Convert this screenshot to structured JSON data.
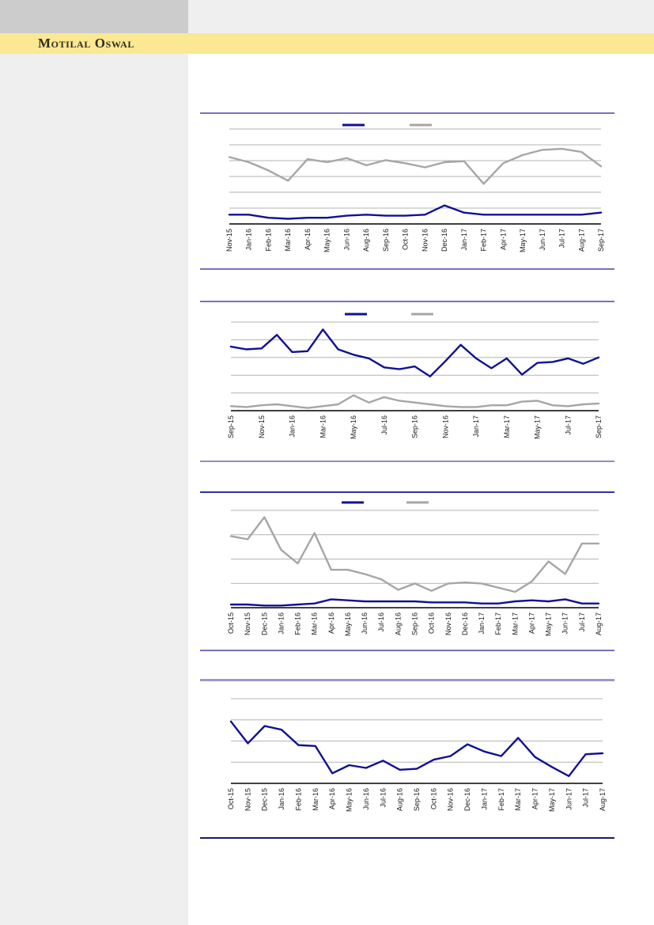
{
  "header": {
    "brand": "Motilal Oswal"
  },
  "colors": {
    "brand_banner_yellow": "#fae892",
    "header_block_gray": "#cccccc",
    "sidebar_gray": "#efefef",
    "navy_series": "#101095",
    "gray_series": "#a6a6a6",
    "gridline_gray": "#b3b3b3",
    "divider_purple": "#7671c3",
    "divider_dark_navy": "#191970",
    "divider_light_purple": "#9b97ce"
  },
  "chart_data": [
    {
      "id": "chart-1",
      "type": "line",
      "title": "",
      "x_labels": [
        "Nov-15",
        "Jan-16",
        "Feb-16",
        "Mar-16",
        "Apr-16",
        "May-16",
        "Jun-16",
        "Aug-16",
        "Sep-16",
        "Oct-16",
        "Nov-16",
        "Dec-16",
        "Jan-17",
        "Feb-17",
        "Apr-17",
        "May-17",
        "Jun-17",
        "Jul-17",
        "Aug-17",
        "Sep-17"
      ],
      "series": [
        {
          "name": "navy-series",
          "color": "#101095",
          "values": [
            9,
            9,
            6,
            5,
            6,
            6,
            8,
            9,
            8,
            8,
            9,
            18,
            11,
            9,
            9,
            9,
            9,
            9,
            9,
            11
          ]
        },
        {
          "name": "gray-series",
          "color": "#a6a6a6",
          "values": [
            65,
            60,
            52,
            42,
            63,
            60,
            64,
            57,
            62,
            59,
            55,
            60,
            61,
            39,
            59,
            67,
            72,
            73,
            70,
            56
          ]
        }
      ],
      "legend": {
        "visible": true,
        "labels": [
          "",
          ""
        ]
      },
      "y_axis": {
        "tick_labels": [],
        "note": "no y-axis labels visible; values estimated on relative 0-100 scale"
      }
    },
    {
      "id": "chart-2",
      "type": "line",
      "title": "",
      "x_labels": [
        "Sep-15",
        "Nov-15",
        "Jan-16",
        "Mar-16",
        "May-16",
        "Jul-16",
        "Sep-16",
        "Nov-16",
        "Jan-17",
        "Mar-17",
        "May-17",
        "Jul-17",
        "Sep-17"
      ],
      "series": [
        {
          "name": "navy-series",
          "color": "#101095",
          "values": [
            71,
            68,
            69,
            84,
            65,
            66,
            90,
            68,
            62,
            58,
            48,
            46,
            49,
            38,
            55,
            73,
            58,
            47,
            58,
            40,
            53,
            54,
            58,
            52,
            59
          ]
        },
        {
          "name": "gray-series",
          "color": "#a6a6a6",
          "values": [
            5,
            4,
            6,
            7,
            5,
            3,
            5,
            7,
            17,
            9,
            15,
            11,
            9,
            7,
            5,
            4,
            4,
            6,
            6,
            10,
            11,
            6,
            5,
            7,
            8
          ]
        }
      ],
      "legend": {
        "visible": true,
        "labels": [
          "",
          ""
        ]
      },
      "y_axis": {
        "tick_labels": [],
        "note": "no y-axis labels visible; values estimated on relative 0-100 scale"
      }
    },
    {
      "id": "chart-3",
      "type": "line",
      "title": "",
      "x_labels": [
        "Oct-15",
        "Nov-15",
        "Dec-15",
        "Jan-16",
        "Feb-16",
        "Mar-16",
        "Apr-16",
        "May-16",
        "Jun-16",
        "Jul-16",
        "Aug-16",
        "Sep-16",
        "Oct-16",
        "Nov-16",
        "Dec-16",
        "Jan-17",
        "Feb-17",
        "Mar-17",
        "Apr-17",
        "May-17",
        "Jun-17",
        "Jul-17",
        "Aug-17"
      ],
      "series": [
        {
          "name": "navy-series",
          "color": "#101095",
          "values": [
            3,
            3,
            2,
            2,
            3,
            4,
            8,
            7,
            6,
            6,
            6,
            6,
            5,
            5,
            5,
            4,
            4,
            6,
            7,
            6,
            8,
            4,
            4
          ]
        },
        {
          "name": "gray-series",
          "color": "#a6a6a6",
          "values": [
            68,
            65,
            86,
            55,
            42,
            71,
            36,
            36,
            32,
            27,
            17,
            23,
            16,
            23,
            24,
            23,
            19,
            15,
            25,
            44,
            32,
            61,
            61
          ]
        }
      ],
      "legend": {
        "visible": true,
        "labels": [
          "",
          ""
        ]
      },
      "y_axis": {
        "tick_labels": [],
        "note": "no y-axis labels visible; values estimated on relative 0-100 scale"
      }
    },
    {
      "id": "chart-4",
      "type": "line",
      "title": "",
      "x_labels": [
        "Oct-15",
        "Nov-15",
        "Dec-15",
        "Jan-16",
        "Feb-16",
        "Mar-16",
        "Apr-16",
        "May-16",
        "Jun-16",
        "Jul-16",
        "Aug-16",
        "Sep-16",
        "Oct-16",
        "Nov-16",
        "Dec-16",
        "Jan-17",
        "Feb-17",
        "Mar-17",
        "Apr-17",
        "May-17",
        "Jun-17",
        "Jul-17",
        "Aug-17"
      ],
      "series": [
        {
          "name": "navy-series",
          "color": "#101095",
          "values": [
            68,
            44,
            63,
            59,
            42,
            41,
            11,
            20,
            17,
            25,
            15,
            16,
            26,
            30,
            43,
            35,
            30,
            50,
            29,
            18,
            8,
            32,
            33
          ]
        }
      ],
      "legend": {
        "visible": false,
        "labels": []
      },
      "y_axis": {
        "tick_labels": [],
        "note": "no y-axis labels visible; values estimated on relative 0-100 scale"
      }
    }
  ]
}
